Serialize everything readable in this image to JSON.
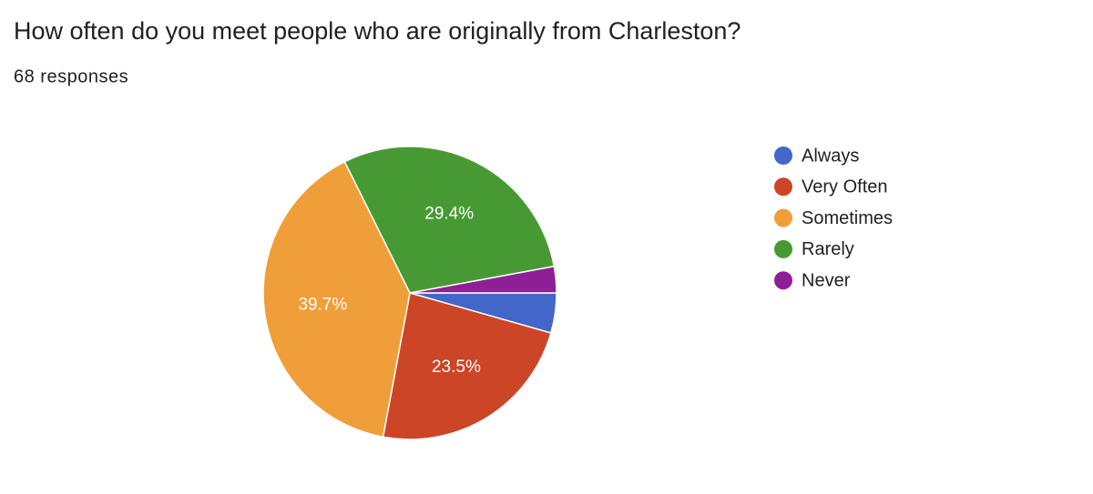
{
  "chart_data": {
    "type": "pie",
    "title": "How often do you meet people who are originally from Charleston?",
    "subtitle": "68 responses",
    "categories": [
      "Always",
      "Very Often",
      "Sometimes",
      "Rarely",
      "Never"
    ],
    "values": [
      4.4,
      23.5,
      39.7,
      29.4,
      2.9
    ],
    "value_labels": [
      null,
      "23.5%",
      "39.7%",
      "29.4%",
      null
    ],
    "colors": [
      "#4366c9",
      "#cc4526",
      "#f09e3a",
      "#479a33",
      "#8e1f96"
    ],
    "legend": "right"
  }
}
